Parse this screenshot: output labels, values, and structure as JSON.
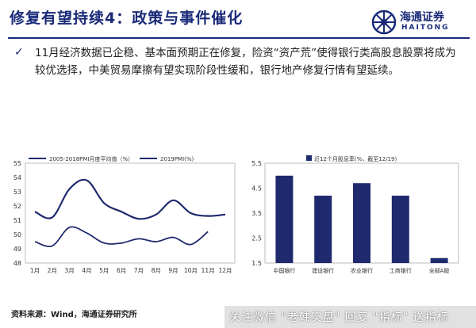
{
  "header": {
    "title": "修复有望持续4：政策与事件催化",
    "logo_cn": "海通证券",
    "logo_en": "HAITONG"
  },
  "bullet": {
    "marker": "✓",
    "text": "11月经济数据已企稳、基本面预期正在修复，险资“资产荒”使得银行类高股息股票将成为较优选择，中美贸易摩擦有望实现阶段性缓和，银行地产修复行情有望延续。"
  },
  "footer": {
    "source": "资料来源：Wind，海通证券研究所",
    "watermark": "关注微信 \"老韩实盘\" 回复 \"指标\" 送指标"
  },
  "colors": {
    "brand": "#1a2a78",
    "series": "#1f2a6e"
  },
  "chart_data": [
    {
      "type": "line",
      "categories": [
        "1月",
        "2月",
        "3月",
        "4月",
        "5月",
        "6月",
        "7月",
        "8月",
        "9月",
        "10月",
        "11月",
        "12月"
      ],
      "ylim": [
        48,
        55
      ],
      "yticks": [
        "48",
        "49",
        "50",
        "51",
        "52",
        "53",
        "54",
        "55"
      ],
      "grid": false,
      "legend": "top",
      "series": [
        {
          "name": "2005-2018PMI月度平均值（%）",
          "values": [
            51.6,
            51.2,
            53.2,
            53.8,
            52.2,
            51.6,
            51.1,
            51.4,
            52.4,
            51.5,
            51.3,
            51.4
          ]
        },
        {
          "name": "2019PMI(%)",
          "values": [
            49.5,
            49.2,
            50.5,
            50.1,
            49.4,
            49.4,
            49.7,
            49.5,
            49.8,
            49.3,
            50.2,
            null
          ]
        }
      ]
    },
    {
      "type": "bar",
      "categories": [
        "中国银行",
        "建设银行",
        "农业银行",
        "工商银行",
        "全部A股"
      ],
      "values": [
        5.0,
        4.2,
        4.7,
        4.2,
        1.7
      ],
      "ylim": [
        1.5,
        5.5
      ],
      "yticks": [
        "1.5",
        "2.5",
        "3.5",
        "4.5",
        "5.5"
      ],
      "grid": false,
      "legend": "top",
      "series_name": "近12个月股息率(%，截至12/19)"
    }
  ]
}
